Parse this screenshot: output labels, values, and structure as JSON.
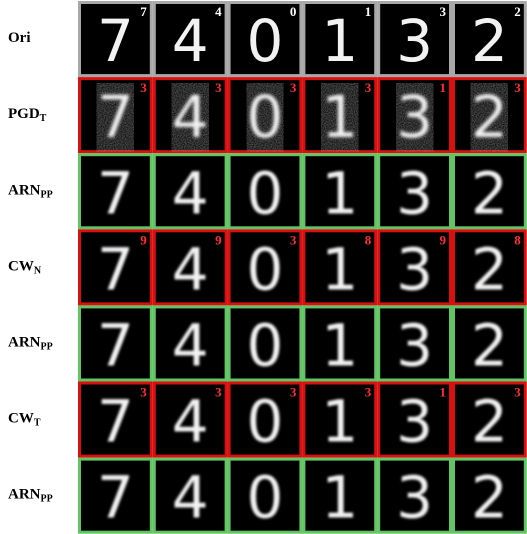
{
  "rows": [
    {
      "label": "Ori",
      "border_color": "#a8a8a8",
      "label_color": "#ffffff",
      "predictions": [
        7,
        4,
        0,
        1,
        3,
        2
      ]
    },
    {
      "label": "PGD",
      "subscript": "T",
      "border_color": "#d81010",
      "label_color": "#ff3030",
      "predictions": [
        3,
        3,
        3,
        3,
        1,
        3
      ]
    },
    {
      "label": "ARN",
      "subscript": "PP",
      "border_color": "#62c462"
    },
    {
      "label": "CW",
      "subscript": "N",
      "border_color": "#d81010",
      "label_color": "#ff3030",
      "predictions": [
        9,
        9,
        3,
        8,
        9,
        8
      ]
    },
    {
      "label": "ARN",
      "subscript": "PP",
      "border_color": "#62c462"
    },
    {
      "label": "CW",
      "subscript": "T",
      "border_color": "#d81010",
      "label_color": "#ff3030",
      "predictions": [
        3,
        3,
        3,
        3,
        1,
        3
      ]
    },
    {
      "label": "ARN",
      "subscript": "PP",
      "border_color": "#62c462"
    }
  ]
}
